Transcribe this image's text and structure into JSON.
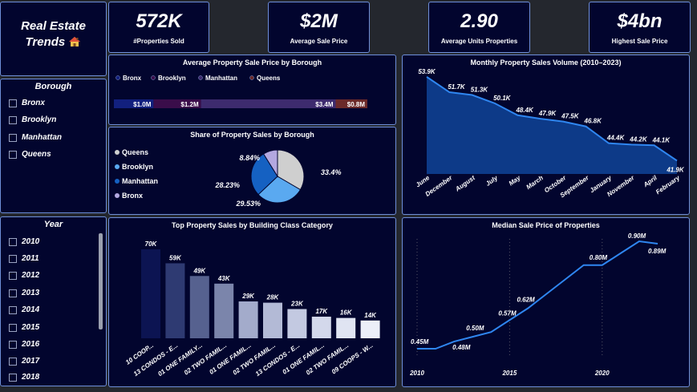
{
  "title": {
    "text": "Real Estate Trends",
    "icon": "house-icon"
  },
  "kpis": [
    {
      "value": "572K",
      "label": "#Properties Sold"
    },
    {
      "value": "$2M",
      "label": "Average Sale Price"
    },
    {
      "value": "2.90",
      "label": "Average Units Properties"
    },
    {
      "value": "$4bn",
      "label": "Highest Sale Price"
    }
  ],
  "borough_slicer": {
    "title": "Borough",
    "items": [
      "Bronx",
      "Brooklyn",
      "Manhattan",
      "Queens"
    ]
  },
  "year_slicer": {
    "title": "Year",
    "items": [
      "2010",
      "2011",
      "2012",
      "2013",
      "2014",
      "2015",
      "2016",
      "2017",
      "2018"
    ]
  },
  "avg_price_chart": {
    "title": "Average Property Sale Price by Borough",
    "legend": [
      "Bronx",
      "Brooklyn",
      "Manhattan",
      "Queens"
    ],
    "colors": [
      "#12207e",
      "#3a0d4a",
      "#3d2b6e",
      "#6b2a2a"
    ],
    "labels": [
      "$1.0M",
      "$1.2M",
      "$3.4M",
      "$0.8M"
    ],
    "values": [
      1.0,
      1.2,
      3.4,
      0.8
    ]
  },
  "share_chart": {
    "title": "Share of Property Sales by Borough",
    "legend": [
      "Queens",
      "Brooklyn",
      "Manhattan",
      "Bronx"
    ],
    "colors": [
      "#cfcfcf",
      "#5aa9f0",
      "#1561c2",
      "#b3a8e0"
    ],
    "values": [
      33.4,
      29.53,
      28.23,
      8.84
    ],
    "labels": [
      "33.4%",
      "29.53%",
      "28.23%",
      "8.84%"
    ]
  },
  "monthly_chart": {
    "title": "Monthly Property Sales Volume (2010–2023)",
    "categories": [
      "June",
      "December",
      "August",
      "July",
      "May",
      "March",
      "October",
      "September",
      "January",
      "November",
      "April",
      "February"
    ],
    "values": [
      53.9,
      51.7,
      51.3,
      50.1,
      48.4,
      47.9,
      47.5,
      46.8,
      44.4,
      44.2,
      44.1,
      41.9
    ],
    "labels": [
      "53.9K",
      "51.7K",
      "51.3K",
      "50.1K",
      "48.4K",
      "47.9K",
      "47.5K",
      "46.8K",
      "44.4K",
      "44.2K",
      "44.1K",
      "41.9K"
    ]
  },
  "building_chart": {
    "title": "Top Property Sales by Building Class Category",
    "categories": [
      "10 COOP...",
      "13 CONDOS - E...",
      "01 ONE FAMILY...",
      "02 TWO FAMIL...",
      "01 ONE FAMIL...",
      "02 TWO FAMIL...",
      "13 CONDOS - E...",
      "01 ONE FAMIL...",
      "02 TWO FAMIL...",
      "09 COOPS - W..."
    ],
    "values": [
      70,
      59,
      49,
      43,
      29,
      28,
      23,
      17,
      16,
      14
    ],
    "labels": [
      "70K",
      "59K",
      "49K",
      "43K",
      "29K",
      "28K",
      "23K",
      "17K",
      "16K",
      "14K"
    ],
    "colors": [
      "#0c1452",
      "#2e3a72",
      "#56618f",
      "#7b85ab",
      "#a3abcb",
      "#b3bad6",
      "#c3c9e1",
      "#d3d8eb",
      "#e0e4f2",
      "#eceff8"
    ]
  },
  "median_chart": {
    "title": "Median Sale Price of Properties",
    "x": [
      2010,
      2011,
      2012,
      2013,
      2014,
      2015,
      2016,
      2017,
      2018,
      2019,
      2020,
      2021,
      2022,
      2023
    ],
    "values": [
      0.45,
      0.45,
      0.48,
      0.5,
      0.52,
      0.57,
      0.62,
      0.68,
      0.74,
      0.8,
      0.8,
      0.85,
      0.9,
      0.89
    ],
    "point_labels": [
      {
        "i": 0,
        "text": "0.45M"
      },
      {
        "i": 2,
        "text": "0.48M"
      },
      {
        "i": 3,
        "text": "0.50M"
      },
      {
        "i": 5,
        "text": "0.57M"
      },
      {
        "i": 6,
        "text": "0.62M"
      },
      {
        "i": 10,
        "text": "0.80M"
      },
      {
        "i": 12,
        "text": "0.90M"
      },
      {
        "i": 13,
        "text": "0.89M"
      }
    ],
    "xticks": [
      "2010",
      "2015",
      "2020"
    ]
  },
  "colors": {
    "background": "#24272e",
    "panel": "#02052e",
    "border": "#6f8fd8",
    "accent": "#2f86f0",
    "area": "#0d3a88"
  }
}
